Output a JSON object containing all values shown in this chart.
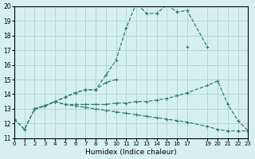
{
  "xlabel": "Humidex (Indice chaleur)",
  "bg_color": "#d6f0f0",
  "grid_color": "#b0d8d8",
  "line_color": "#2e7d6e",
  "xlim": [
    0,
    23
  ],
  "ylim": [
    11,
    20
  ],
  "xticks": [
    0,
    1,
    2,
    3,
    4,
    5,
    6,
    7,
    8,
    9,
    10,
    11,
    12,
    13,
    14,
    15,
    16,
    17,
    19,
    20,
    21,
    22,
    23
  ],
  "yticks": [
    11,
    12,
    13,
    14,
    15,
    16,
    17,
    18,
    19,
    20
  ],
  "lines": [
    {
      "x": [
        0,
        1,
        2,
        3,
        4,
        5,
        6,
        7,
        8,
        9,
        10,
        11,
        12,
        13,
        14,
        15,
        16,
        17,
        19,
        20,
        21,
        22,
        23
      ],
      "y": [
        12.3,
        11.6,
        13.0,
        13.2,
        13.5,
        13.8,
        14.1,
        14.3,
        14.3,
        15.3,
        16.3,
        18.5,
        20.2,
        19.5,
        19.5,
        20.1,
        19.6,
        19.7,
        17.2,
        null,
        null,
        null,
        null
      ]
    },
    {
      "x": [
        0,
        1,
        2,
        3,
        4,
        5,
        6,
        7,
        8,
        9,
        10,
        11,
        12,
        13,
        14,
        15,
        16,
        17,
        19,
        20,
        21,
        22,
        23
      ],
      "y": [
        12.3,
        11.6,
        13.0,
        13.2,
        13.5,
        13.8,
        14.1,
        14.3,
        14.3,
        14.8,
        15.0,
        null,
        null,
        null,
        null,
        null,
        null,
        17.2,
        null,
        null,
        null,
        null,
        null
      ]
    },
    {
      "x": [
        2,
        3,
        4,
        5,
        6,
        7,
        8,
        9,
        10,
        11,
        12,
        13,
        14,
        15,
        16,
        17,
        19,
        20,
        21,
        22,
        23
      ],
      "y": [
        13.0,
        13.2,
        13.5,
        13.3,
        13.3,
        13.3,
        13.3,
        13.3,
        13.4,
        13.4,
        13.5,
        13.5,
        13.6,
        13.7,
        13.9,
        14.1,
        14.6,
        14.9,
        13.3,
        12.2,
        11.5
      ]
    },
    {
      "x": [
        2,
        3,
        4,
        5,
        6,
        7,
        8,
        9,
        10,
        11,
        12,
        13,
        14,
        15,
        16,
        17,
        19,
        20,
        21,
        22,
        23
      ],
      "y": [
        13.0,
        13.2,
        13.5,
        13.3,
        13.2,
        13.1,
        13.0,
        12.9,
        12.8,
        12.7,
        12.6,
        12.5,
        12.4,
        12.3,
        12.2,
        12.1,
        11.8,
        11.6,
        11.5,
        11.5,
        11.5
      ]
    }
  ]
}
